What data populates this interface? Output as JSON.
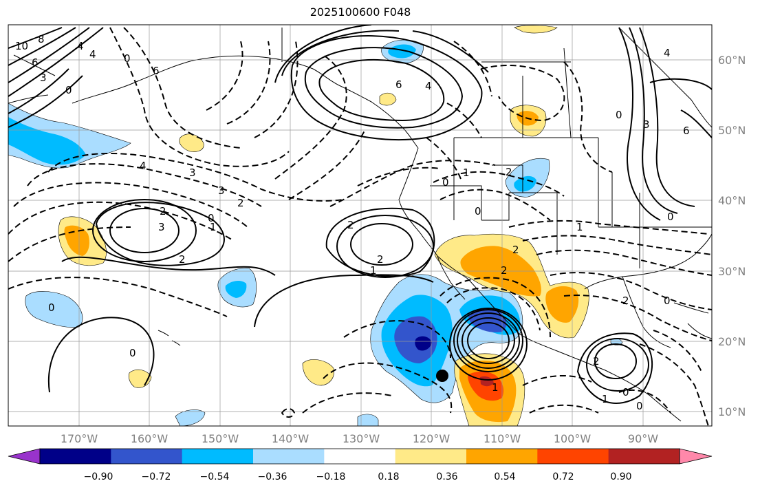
{
  "title": "2025100600 F048",
  "lat_labels": [
    "60°N",
    "50°N",
    "40°N",
    "30°N",
    "20°N",
    "10°N"
  ],
  "lon_labels": [
    "170°W",
    "160°W",
    "150°W",
    "140°W",
    "130°W",
    "120°W",
    "110°W",
    "100°W",
    "90°W"
  ],
  "colorbar": {
    "colors": [
      "#9933cc",
      "#000088",
      "#3355cc",
      "#00bbff",
      "#aaddff",
      "#ffffff",
      "#ffea88",
      "#ffa500",
      "#ff4400",
      "#b22222",
      "#ff88aa"
    ],
    "ticks": [
      "−0.90",
      "−0.72",
      "−0.54",
      "−0.36",
      "−0.18",
      "0.18",
      "0.36",
      "0.54",
      "0.72",
      "0.90"
    ]
  },
  "contour_labels": [
    "10",
    "8",
    "6",
    "4",
    "3",
    "0",
    "6",
    "4",
    "0",
    "3",
    "4",
    "3",
    "2",
    "2",
    "3",
    "2",
    "0",
    "2",
    "1",
    "2",
    "1",
    "0",
    "0",
    "1",
    "2",
    "0",
    "2",
    "2",
    "1",
    "0",
    "2",
    "0",
    "2",
    "1",
    "0",
    "1",
    "0",
    "6",
    "4",
    "4",
    "6",
    "3",
    "0",
    "0"
  ],
  "marker": "storm-center"
}
